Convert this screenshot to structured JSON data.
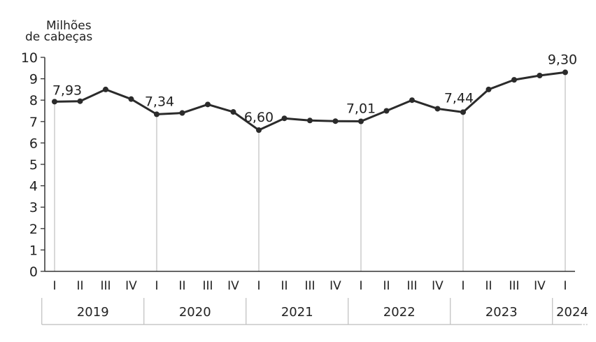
{
  "chart_data": {
    "type": "line",
    "ylabel": [
      "Milhões",
      "de cabeças"
    ],
    "ylim": [
      0,
      10
    ],
    "yticks": [
      "0",
      "1",
      "2",
      "3",
      "4",
      "5",
      "6",
      "7",
      "8",
      "9",
      "10"
    ],
    "categories": [
      "I",
      "II",
      "III",
      "IV",
      "I",
      "II",
      "III",
      "IV",
      "I",
      "II",
      "III",
      "IV",
      "I",
      "II",
      "III",
      "IV",
      "I",
      "II",
      "III",
      "IV",
      "I"
    ],
    "years": [
      "2019",
      "2020",
      "2021",
      "2022",
      "2023",
      "2024"
    ],
    "series": [
      {
        "values": [
          7.93,
          7.95,
          8.5,
          8.05,
          7.34,
          7.4,
          7.8,
          7.45,
          6.6,
          7.15,
          7.05,
          7.02,
          7.01,
          7.5,
          8.0,
          7.6,
          7.44,
          8.5,
          8.95,
          9.15,
          9.3
        ]
      }
    ],
    "data_labels": [
      {
        "index": 0,
        "text": "7,93"
      },
      {
        "index": 4,
        "text": "7,34"
      },
      {
        "index": 8,
        "text": "6,60"
      },
      {
        "index": 12,
        "text": "7,01"
      },
      {
        "index": 16,
        "text": "7,44"
      },
      {
        "index": 20,
        "text": "9,30"
      }
    ],
    "colors": {
      "line": "#2b2b2b",
      "axis": "#333333",
      "grid": "#bdbdbd"
    }
  }
}
